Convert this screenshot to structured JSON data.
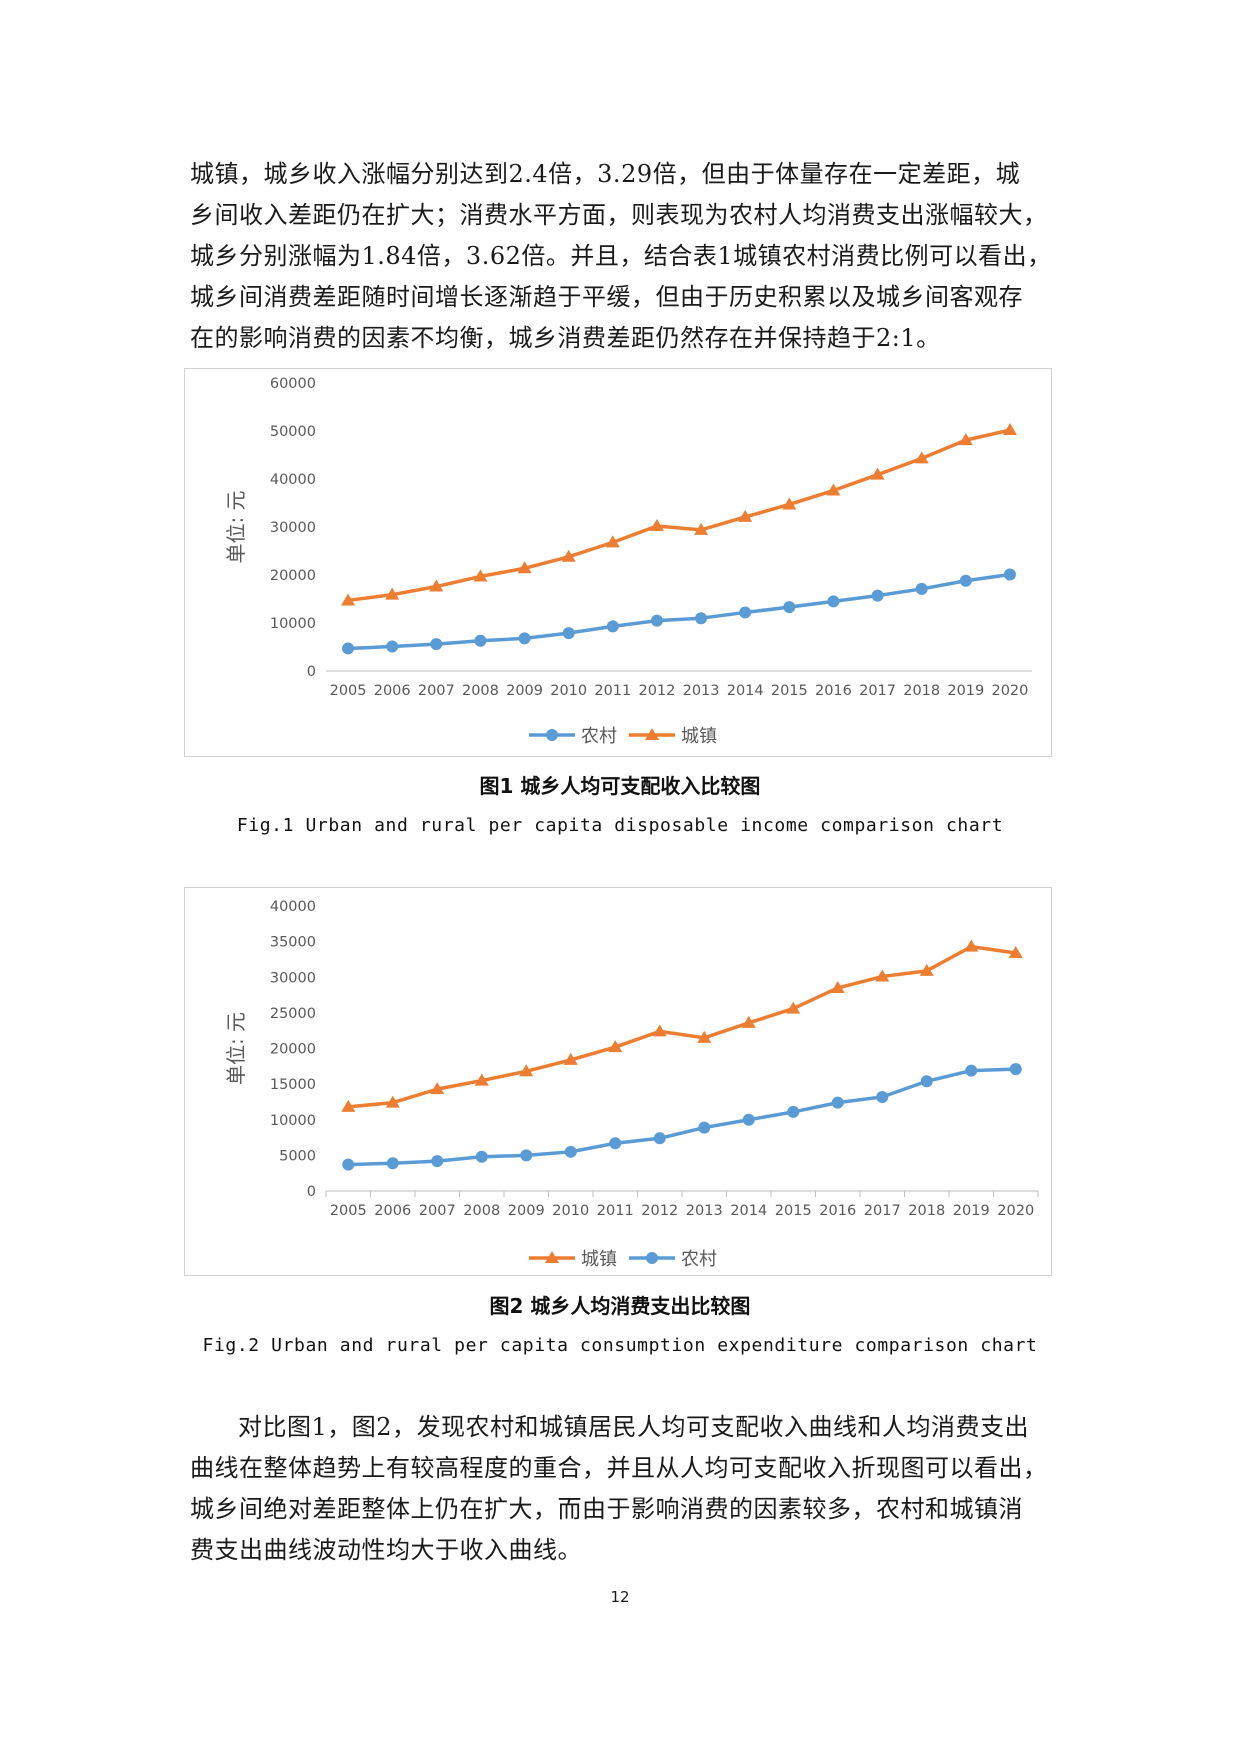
{
  "paragraph_1": {
    "lines": [
      "城镇，城乡收入涨幅分别达到2.4倍，3.29倍，但由于体量存在一定差距，城",
      "乡间收入差距仍在扩大；消费水平方面，则表现为农村人均消费支出涨幅较大，",
      "城乡分别涨幅为1.84倍，3.62倍。并且，结合表1城镇农村消费比例可以看出，",
      "城乡间消费差距随时间增长逐渐趋于平缓，但由于历史积累以及城乡间客观存",
      "在的影响消费的因素不均衡，城乡消费差距仍然存在并保持趋于2:1。"
    ]
  },
  "figure_1": {
    "caption_cn": "图1   城乡人均可支配收入比较图",
    "caption_en": "Fig.1 Urban and rural per capita disposable income comparison chart"
  },
  "figure_2": {
    "caption_cn": "图2   城乡人均消费支出比较图",
    "caption_en": "Fig.2 Urban and rural per capita consumption expenditure comparison chart"
  },
  "paragraph_2": {
    "lines": [
      "对比图1，图2，发现农村和城镇居民人均可支配收入曲线和人均消费支出",
      "曲线在整体趋势上有较高程度的重合，并且从人均可支配收入折现图可以看出，",
      "城乡间绝对差距整体上仍在扩大，而由于影响消费的因素较多，农村和城镇消",
      "费支出曲线波动性均大于收入曲线。"
    ]
  },
  "page_number": "12",
  "chart_data": [
    {
      "type": "line",
      "title": "城乡人均可支配收入比较图",
      "xlabel": "",
      "ylabel": "单位: 元",
      "ylim": [
        0,
        60000
      ],
      "yticks": [
        0,
        10000,
        20000,
        30000,
        40000,
        50000,
        60000
      ],
      "grid": false,
      "legend_position": "bottom",
      "categories": [
        "2005",
        "2006",
        "2007",
        "2008",
        "2009",
        "2010",
        "2011",
        "2012",
        "2013",
        "2014",
        "2015",
        "2016",
        "2017",
        "2018",
        "2019",
        "2020"
      ],
      "series": [
        {
          "name": "农村",
          "color": "#5b9bd5",
          "marker": "circle",
          "values": [
            4700,
            5100,
            5600,
            6300,
            6800,
            7900,
            9300,
            10500,
            11000,
            12200,
            13300,
            14500,
            15700,
            17100,
            18800,
            20100
          ]
        },
        {
          "name": "城镇",
          "color": "#ed7d31",
          "marker": "triangle",
          "values": [
            14700,
            15900,
            17600,
            19700,
            21400,
            23800,
            26800,
            30200,
            29400,
            32100,
            34700,
            37600,
            40900,
            44300,
            48100,
            50200
          ]
        }
      ]
    },
    {
      "type": "line",
      "title": "城乡人均消费支出比较图",
      "xlabel": "",
      "ylabel": "单位: 元",
      "ylim": [
        0,
        40000
      ],
      "yticks": [
        0,
        5000,
        10000,
        15000,
        20000,
        25000,
        30000,
        35000,
        40000
      ],
      "grid": false,
      "legend_position": "bottom",
      "categories": [
        "2005",
        "2006",
        "2007",
        "2008",
        "2009",
        "2010",
        "2011",
        "2012",
        "2013",
        "2014",
        "2015",
        "2016",
        "2017",
        "2018",
        "2019",
        "2020"
      ],
      "series": [
        {
          "name": "城镇",
          "color": "#ed7d31",
          "marker": "triangle",
          "values": [
            11800,
            12400,
            14300,
            15500,
            16800,
            18400,
            20200,
            22400,
            21500,
            23600,
            25600,
            28500,
            30100,
            30900,
            34300,
            33400
          ]
        },
        {
          "name": "农村",
          "color": "#5b9bd5",
          "marker": "circle",
          "values": [
            3700,
            3900,
            4200,
            4800,
            5000,
            5500,
            6700,
            7400,
            8900,
            10000,
            11100,
            12400,
            13200,
            15400,
            16900,
            17100
          ]
        }
      ]
    }
  ]
}
